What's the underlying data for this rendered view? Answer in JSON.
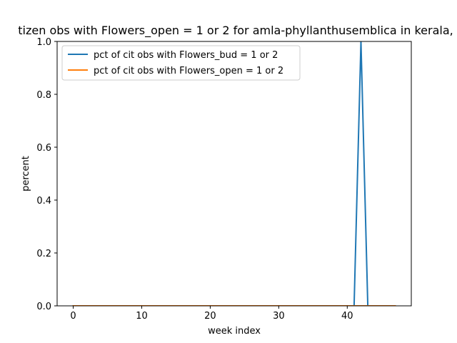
{
  "chart_data": {
    "type": "line",
    "title": "tizen obs with Flowers_open = 1 or 2 for amla-phyllanthusemblica in kerala,",
    "xlabel": "week index",
    "ylabel": "percent",
    "xlim": [
      -2.35,
      49.35
    ],
    "ylim": [
      0,
      1.0
    ],
    "xticks": [
      0,
      10,
      20,
      30,
      40
    ],
    "yticks": [
      0.0,
      0.2,
      0.4,
      0.6,
      0.8,
      1.0
    ],
    "xtick_labels": [
      "0",
      "10",
      "20",
      "30",
      "40"
    ],
    "ytick_labels": [
      "0.0",
      "0.2",
      "0.4",
      "0.6",
      "0.8",
      "1.0"
    ],
    "grid": false,
    "legend_position": "upper-left",
    "series": [
      {
        "name": "pct of cit obs with Flowers_bud = 1 or 2",
        "color": "#1f77b4",
        "x": [
          0,
          1,
          2,
          3,
          4,
          5,
          6,
          7,
          8,
          9,
          10,
          11,
          12,
          13,
          14,
          15,
          16,
          17,
          18,
          19,
          20,
          21,
          22,
          23,
          24,
          25,
          26,
          27,
          28,
          29,
          30,
          31,
          32,
          33,
          34,
          35,
          36,
          37,
          38,
          39,
          40,
          41,
          42,
          43,
          44,
          45,
          46,
          47
        ],
        "values": [
          0,
          0,
          0,
          0,
          0,
          0,
          0,
          0,
          0,
          0,
          0,
          0,
          0,
          0,
          0,
          0,
          0,
          0,
          0,
          0,
          0,
          0,
          0,
          0,
          0,
          0,
          0,
          0,
          0,
          0,
          0,
          0,
          0,
          0,
          0,
          0,
          0,
          0,
          0,
          0,
          0,
          0,
          1,
          0,
          0,
          0,
          0,
          0
        ]
      },
      {
        "name": "pct of cit obs with Flowers_open = 1 or 2",
        "color": "#ff7f0e",
        "x": [
          0,
          1,
          2,
          3,
          4,
          5,
          6,
          7,
          8,
          9,
          10,
          11,
          12,
          13,
          14,
          15,
          16,
          17,
          18,
          19,
          20,
          21,
          22,
          23,
          24,
          25,
          26,
          27,
          28,
          29,
          30,
          31,
          32,
          33,
          34,
          35,
          36,
          37,
          38,
          39,
          40,
          41,
          42,
          43,
          44,
          45,
          46,
          47
        ],
        "values": [
          0,
          0,
          0,
          0,
          0,
          0,
          0,
          0,
          0,
          0,
          0,
          0,
          0,
          0,
          0,
          0,
          0,
          0,
          0,
          0,
          0,
          0,
          0,
          0,
          0,
          0,
          0,
          0,
          0,
          0,
          0,
          0,
          0,
          0,
          0,
          0,
          0,
          0,
          0,
          0,
          0,
          0,
          0,
          0,
          0,
          0,
          0,
          0
        ]
      }
    ]
  }
}
